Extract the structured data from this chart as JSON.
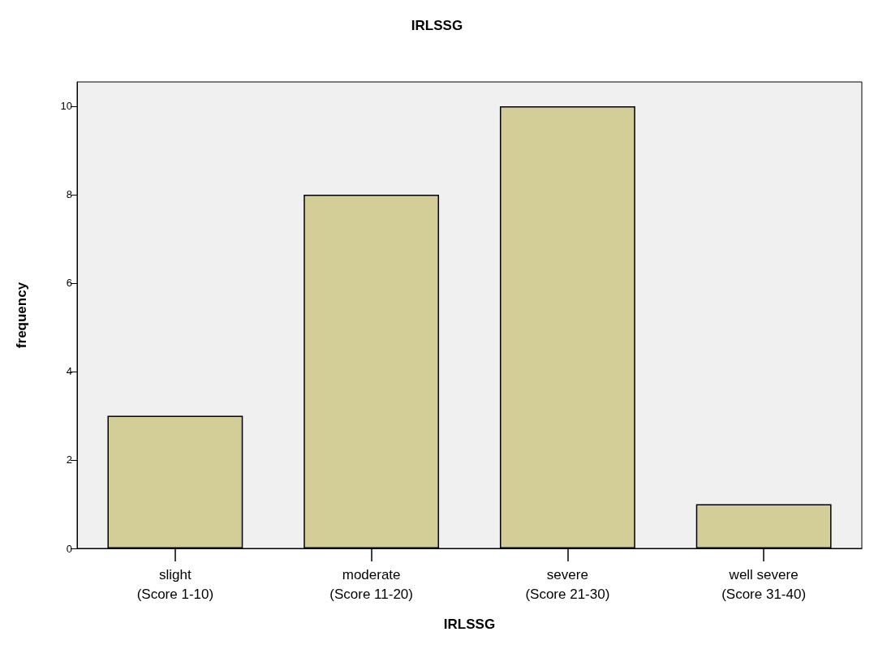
{
  "chart_data": {
    "type": "bar",
    "title": "IRLSSG",
    "xlabel": "IRLSSG",
    "ylabel": "frequency",
    "categories": [
      "slight\n(Score 1-10)",
      "moderate\n(Score 11-20)",
      "severe\n(Score 21-30)",
      "well severe\n(Score 31-40)"
    ],
    "values": [
      3,
      8,
      10,
      1
    ],
    "color": "#d3ce97",
    "ylim": [
      0,
      10.55
    ],
    "yticks": [
      0,
      2,
      4,
      6,
      8,
      10
    ],
    "grid": false
  }
}
